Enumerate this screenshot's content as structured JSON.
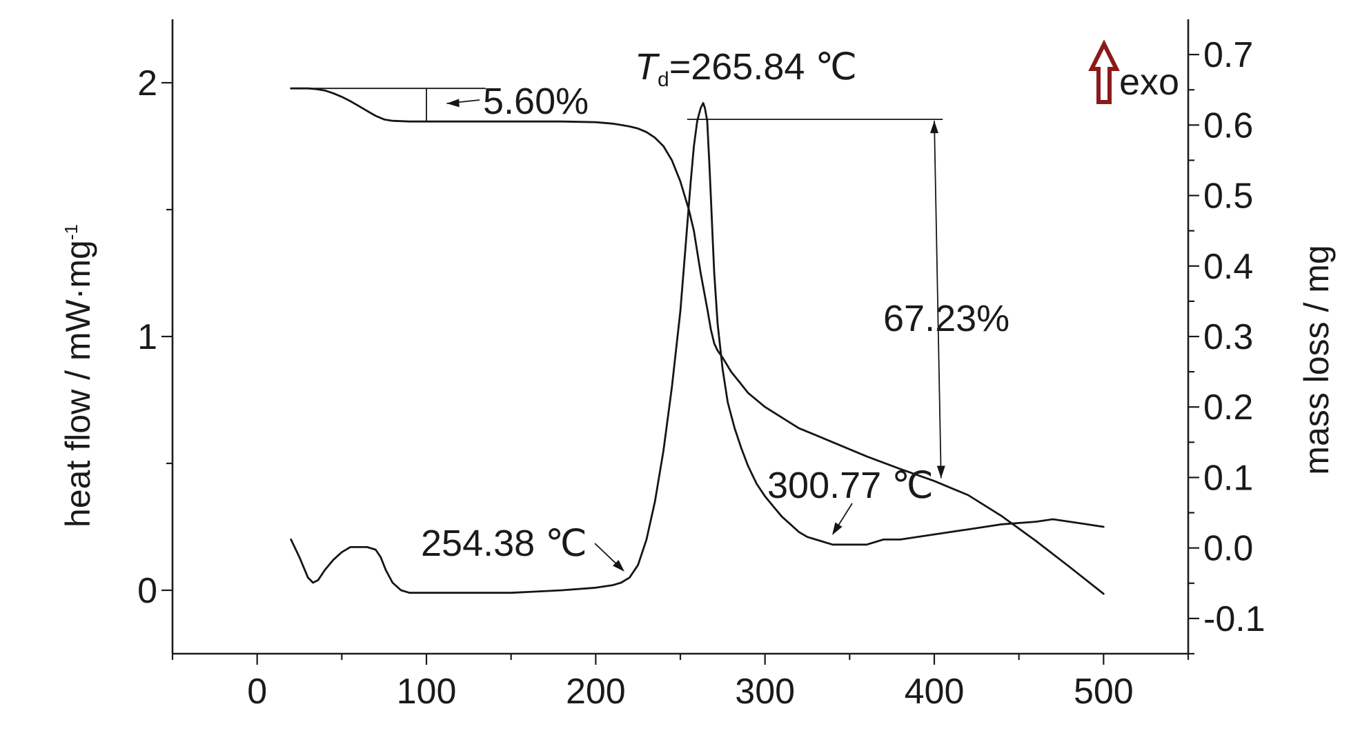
{
  "chart_data": {
    "type": "line",
    "xlim": [
      -50,
      550
    ],
    "x_ticks": [
      0,
      100,
      200,
      300,
      400,
      500
    ],
    "y_left": {
      "label": "heat flow / mW·mg",
      "label_superscript": "-1",
      "lim": [
        -0.25,
        2.25
      ],
      "ticks": [
        0,
        1,
        2
      ]
    },
    "y_right": {
      "label": "mass loss / mg",
      "lim": [
        -0.15,
        0.75
      ],
      "ticks": [
        0.7,
        0.6,
        0.5,
        0.4,
        0.3,
        0.2,
        0.1,
        0.0,
        -0.1
      ],
      "tick_labels": [
        "0.7",
        "0.6",
        "0.5",
        "0.4",
        "0.3",
        "0.2",
        "0.1",
        "0.0",
        "-0.1"
      ]
    },
    "series": [
      {
        "axis": "left",
        "x": [
          20,
          25,
          30,
          33,
          36,
          40,
          45,
          50,
          55,
          60,
          65,
          70,
          73,
          76,
          80,
          85,
          90,
          95,
          100,
          120,
          150,
          180,
          200,
          210,
          215,
          220,
          225,
          230,
          235,
          240,
          245,
          250,
          253,
          256,
          258,
          260,
          262,
          263.5,
          264.5,
          265.84,
          267,
          268,
          269,
          270,
          272,
          275,
          278,
          282,
          286,
          290,
          295,
          300,
          305,
          310,
          315,
          320,
          325,
          330,
          335,
          340,
          350,
          360,
          365,
          370,
          380,
          400,
          420,
          440,
          460,
          470,
          480,
          490,
          500
        ],
        "y": [
          0.2,
          0.13,
          0.05,
          0.03,
          0.04,
          0.08,
          0.12,
          0.15,
          0.17,
          0.17,
          0.17,
          0.16,
          0.13,
          0.08,
          0.03,
          0.0,
          -0.01,
          -0.01,
          -0.01,
          -0.01,
          -0.01,
          0.0,
          0.01,
          0.02,
          0.03,
          0.05,
          0.1,
          0.2,
          0.35,
          0.55,
          0.8,
          1.1,
          1.35,
          1.6,
          1.75,
          1.85,
          1.9,
          1.92,
          1.9,
          1.85,
          1.7,
          1.55,
          1.4,
          1.25,
          1.05,
          0.87,
          0.74,
          0.64,
          0.56,
          0.49,
          0.42,
          0.37,
          0.33,
          0.29,
          0.26,
          0.23,
          0.21,
          0.2,
          0.19,
          0.18,
          0.18,
          0.18,
          0.19,
          0.2,
          0.2,
          0.22,
          0.24,
          0.26,
          0.27,
          0.28,
          0.27,
          0.26,
          0.25
        ]
      },
      {
        "axis": "right",
        "x": [
          20,
          25,
          30,
          35,
          40,
          45,
          50,
          55,
          60,
          65,
          70,
          75,
          80,
          90,
          100,
          120,
          150,
          180,
          200,
          210,
          215,
          220,
          225,
          230,
          235,
          240,
          245,
          250,
          255,
          258,
          260,
          262,
          265.84,
          268,
          270,
          272,
          275,
          280,
          285,
          290,
          300,
          310,
          320,
          330,
          340,
          350,
          360,
          380,
          400,
          410,
          420,
          440,
          460,
          480,
          500
        ],
        "y": [
          0.652,
          0.652,
          0.652,
          0.651,
          0.649,
          0.645,
          0.64,
          0.634,
          0.627,
          0.62,
          0.613,
          0.608,
          0.606,
          0.605,
          0.605,
          0.605,
          0.605,
          0.605,
          0.604,
          0.602,
          0.6,
          0.598,
          0.595,
          0.59,
          0.582,
          0.57,
          0.55,
          0.52,
          0.48,
          0.45,
          0.42,
          0.39,
          0.34,
          0.31,
          0.29,
          0.28,
          0.27,
          0.25,
          0.235,
          0.22,
          0.2,
          0.185,
          0.17,
          0.16,
          0.15,
          0.14,
          0.13,
          0.112,
          0.095,
          0.085,
          0.075,
          0.045,
          0.01,
          -0.027,
          -0.065
        ]
      }
    ],
    "annotations": {
      "td_symbol": "T",
      "td_subscript": "d",
      "td_value": "=265.84 ℃",
      "step1_loss": "5.60%",
      "step2_loss": "67.23%",
      "onset_label": "254.38 ℃",
      "end_label": "300.77 ℃",
      "exo_label": "exo"
    },
    "colors": {
      "line": "#151515",
      "exo_arrow": "#8b1a1a"
    }
  }
}
